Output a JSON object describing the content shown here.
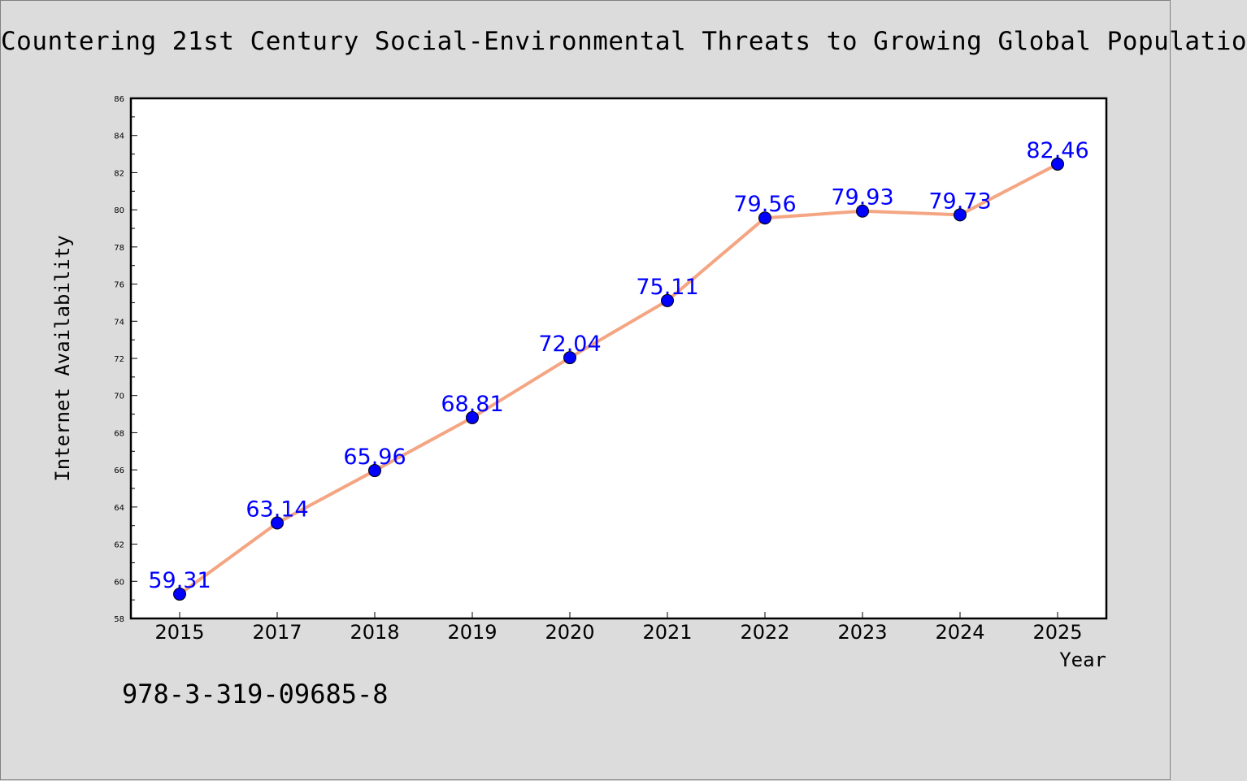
{
  "chart_data": {
    "type": "line",
    "title": "Countering 21st Century Social-Environmental Threats to Growing Global Populatio",
    "xlabel": "Year",
    "ylabel": "Internet Availability",
    "categories": [
      "2015",
      "2017",
      "2018",
      "2019",
      "2020",
      "2021",
      "2022",
      "2023",
      "2024",
      "2025"
    ],
    "values": [
      59.31,
      63.14,
      65.96,
      68.81,
      72.04,
      75.11,
      79.56,
      79.93,
      79.73,
      82.46
    ],
    "data_labels": [
      "59.31",
      "63.14",
      "65.96",
      "68.81",
      "72.04",
      "75.11",
      "79.56",
      "79.93",
      "79.73",
      "82.46"
    ],
    "ylim": [
      58,
      86
    ],
    "yticks": [
      58,
      60,
      62,
      64,
      66,
      68,
      70,
      72,
      74,
      76,
      78,
      80,
      82,
      84,
      86
    ],
    "grid": false,
    "legend": "none",
    "line_color": "#f4a582",
    "marker_color": "#0000ff",
    "label_color": "#0000ff",
    "plot_background": "#ffffff",
    "page_background": "#dcdcdc"
  },
  "footer": {
    "isbn": "978-3-319-09685-8"
  }
}
